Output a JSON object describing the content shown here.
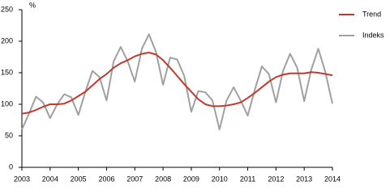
{
  "chart_data": {
    "type": "line",
    "y_label": "%",
    "x": [
      2003,
      2003.25,
      2003.5,
      2003.75,
      2004,
      2004.25,
      2004.5,
      2004.75,
      2005,
      2005.25,
      2005.5,
      2005.75,
      2006,
      2006.25,
      2006.5,
      2006.75,
      2007,
      2007.25,
      2007.5,
      2007.75,
      2008,
      2008.25,
      2008.5,
      2008.75,
      2009,
      2009.25,
      2009.5,
      2009.75,
      2010,
      2010.25,
      2010.5,
      2010.75,
      2011,
      2011.25,
      2011.5,
      2011.75,
      2012,
      2012.25,
      2012.5,
      2012.75,
      2013,
      2013.25,
      2013.5,
      2013.75,
      2014
    ],
    "series": [
      {
        "name": "Trend",
        "color": "#c0392b",
        "values": [
          85,
          87,
          91,
          96,
          100,
          100,
          101,
          106,
          113,
          120,
          130,
          140,
          148,
          158,
          165,
          170,
          176,
          180,
          182,
          179,
          170,
          158,
          145,
          132,
          120,
          108,
          100,
          97,
          97,
          98,
          100,
          103,
          110,
          118,
          127,
          136,
          143,
          147,
          149,
          149,
          149,
          151,
          150,
          148,
          146
        ]
      },
      {
        "name": "Indeks",
        "color": "#a0a0a0",
        "values": [
          60,
          85,
          112,
          103,
          78,
          100,
          116,
          111,
          83,
          120,
          153,
          143,
          106,
          168,
          191,
          168,
          136,
          188,
          211,
          183,
          131,
          174,
          171,
          145,
          88,
          121,
          119,
          106,
          60,
          106,
          127,
          106,
          82,
          123,
          160,
          148,
          103,
          153,
          180,
          158,
          105,
          155,
          188,
          151,
          101
        ]
      }
    ],
    "xlim": [
      2003,
      2014
    ],
    "xticks": [
      2003,
      2004,
      2005,
      2006,
      2007,
      2008,
      2009,
      2010,
      2011,
      2012,
      2013,
      2014
    ],
    "ylim": [
      0,
      250
    ],
    "yticks": [
      0,
      50,
      100,
      150,
      200,
      250
    ],
    "grid": false,
    "legend": "right"
  }
}
